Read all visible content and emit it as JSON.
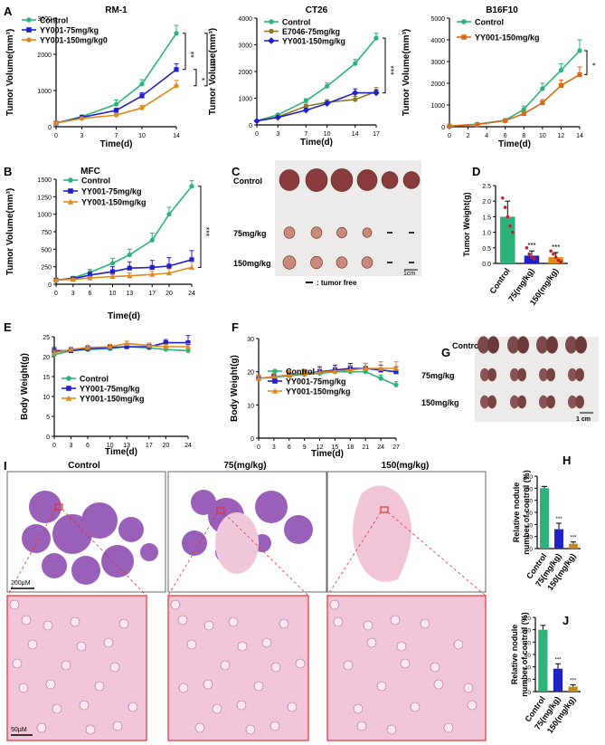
{
  "chart_data": [
    {
      "id": "A1",
      "type": "line",
      "panel": "A",
      "title": "RM-1",
      "xlabel": "Time(d)",
      "ylabel": "Tumor Volume(mm³)",
      "x": [
        0,
        3,
        7,
        10,
        14
      ],
      "xticks": [
        "0",
        "3",
        "7",
        "10",
        "14"
      ],
      "ylim": [
        0,
        3000
      ],
      "yticks": [
        "0",
        "1000",
        "2000",
        "3000"
      ],
      "series": [
        {
          "name": "Control",
          "color": "#2db37a",
          "marker": "circle",
          "values": [
            100,
            280,
            620,
            1180,
            2580
          ],
          "err": [
            20,
            40,
            120,
            120,
            220
          ]
        },
        {
          "name": "YY001-75mg/kg",
          "color": "#2020c8",
          "marker": "square",
          "values": [
            100,
            260,
            450,
            850,
            1580
          ],
          "err": [
            20,
            30,
            60,
            90,
            160
          ]
        },
        {
          "name": "YY001-150mg/kg0",
          "color": "#e08a1c",
          "marker": "circle",
          "values": [
            100,
            230,
            320,
            520,
            1130
          ],
          "err": [
            20,
            30,
            40,
            70,
            150
          ]
        }
      ],
      "sig": [
        {
          "label": "**",
          "from": 0,
          "to": 1
        },
        {
          "label": "*",
          "from": 1,
          "to": 2
        },
        {
          "label": "***",
          "from": 0,
          "to": 2
        }
      ]
    },
    {
      "id": "A2",
      "type": "line",
      "panel": "",
      "title": "CT26",
      "xlabel": "Time(d)",
      "ylabel": "Tumor Volume(mm³)",
      "x": [
        0,
        3,
        7,
        10,
        14,
        17
      ],
      "xticks": [
        "0",
        "3",
        "7",
        "10",
        "14",
        "17"
      ],
      "ylim": [
        0,
        4000
      ],
      "yticks": [
        "0",
        "1000",
        "2000",
        "3000",
        "4000"
      ],
      "series": [
        {
          "name": "Control",
          "color": "#2db37a",
          "marker": "circle",
          "values": [
            150,
            380,
            900,
            1450,
            2300,
            3250
          ],
          "err": [
            20,
            40,
            80,
            120,
            150,
            180
          ]
        },
        {
          "name": "E7046-75mg/kg",
          "color": "#8a7a2a",
          "marker": "circle",
          "values": [
            150,
            300,
            700,
            850,
            950,
            1250
          ],
          "err": [
            20,
            40,
            80,
            100,
            120,
            150
          ]
        },
        {
          "name": "YY001-150mg/kg",
          "color": "#2020c8",
          "marker": "diamond",
          "values": [
            150,
            280,
            550,
            800,
            1200,
            1200
          ],
          "err": [
            20,
            30,
            70,
            90,
            150,
            120
          ]
        }
      ],
      "sig": [
        {
          "label": "***",
          "from": 0,
          "to": 2
        }
      ]
    },
    {
      "id": "A3",
      "type": "line",
      "panel": "",
      "title": "B16F10",
      "xlabel": "Time(d)",
      "ylabel": "Tumor Volume(mm³)",
      "x": [
        0,
        3,
        6,
        8,
        10,
        12,
        14
      ],
      "xticks": [
        "0",
        "2",
        "4",
        "6",
        "8",
        "10",
        "12",
        "14"
      ],
      "ylim": [
        0,
        5000
      ],
      "yticks": [
        "0",
        "1000",
        "2000",
        "3000",
        "4000",
        "5000"
      ],
      "series": [
        {
          "name": "Control",
          "color": "#2db37a",
          "marker": "circle",
          "values": [
            30,
            120,
            300,
            800,
            1750,
            2600,
            3500
          ],
          "err": [
            10,
            20,
            50,
            150,
            250,
            300,
            500
          ]
        },
        {
          "name": "YY001-150mg/kg",
          "color": "#d86a1c",
          "marker": "square",
          "values": [
            30,
            100,
            280,
            600,
            1100,
            1900,
            2400
          ],
          "err": [
            10,
            20,
            40,
            100,
            150,
            250,
            350
          ]
        }
      ],
      "sig": [
        {
          "label": "*",
          "from": 0,
          "to": 1
        }
      ]
    },
    {
      "id": "B",
      "type": "line",
      "panel": "B",
      "title": "MFC",
      "xlabel": "Time(d)",
      "ylabel": "Tumor Volume(mm³)",
      "x": [
        0,
        3,
        6,
        10,
        13,
        17,
        20,
        24
      ],
      "xticks": [
        "0",
        "3",
        "6",
        "10",
        "13",
        "17",
        "20",
        "24"
      ],
      "ylim": [
        0,
        1500
      ],
      "yticks": [
        "0",
        "250",
        "500",
        "750",
        "1000",
        "1250",
        "1500"
      ],
      "series": [
        {
          "name": "Control",
          "color": "#2db37a",
          "marker": "circle",
          "values": [
            60,
            90,
            170,
            300,
            420,
            630,
            1000,
            1400
          ],
          "err": [
            10,
            20,
            40,
            70,
            80,
            100,
            100,
            80
          ]
        },
        {
          "name": "YY001-75mg/kg",
          "color": "#2020c8",
          "marker": "square",
          "values": [
            60,
            80,
            130,
            180,
            230,
            240,
            260,
            350
          ],
          "err": [
            10,
            20,
            40,
            70,
            90,
            100,
            120,
            130
          ]
        },
        {
          "name": "YY001-150mg/kg",
          "color": "#e08a1c",
          "marker": "triangle",
          "values": [
            60,
            70,
            90,
            110,
            120,
            140,
            160,
            240
          ],
          "err": [
            10,
            15,
            20,
            30,
            40,
            50,
            60,
            80
          ]
        }
      ],
      "sig": [
        {
          "label": "***",
          "from": 0,
          "to": 2
        }
      ]
    },
    {
      "id": "D",
      "type": "bar",
      "panel": "D",
      "title": "",
      "xlabel": "",
      "ylabel": "Tumor Weight(g)",
      "categories": [
        "Control",
        "75(mg/kg)",
        "150(mg/kg)"
      ],
      "values": [
        1.5,
        0.25,
        0.2
      ],
      "err": [
        0.5,
        0.15,
        0.15
      ],
      "colors": [
        "#2db37a",
        "#2020c8",
        "#e08a1c"
      ],
      "ylim": [
        0,
        2.5
      ],
      "yticks": [
        "0.0",
        "0.5",
        "1.0",
        "1.5",
        "2.0",
        "2.5"
      ],
      "sig": [
        "",
        "***",
        "***"
      ],
      "points": [
        [
          2.1,
          1.8,
          1.5,
          1.2,
          1.0
        ],
        [
          0.5,
          0.3,
          0.2,
          0.15
        ],
        [
          0.4,
          0.3,
          0.2,
          0.1,
          0.05
        ]
      ]
    },
    {
      "id": "E",
      "type": "line",
      "panel": "E",
      "title": "",
      "xlabel": "Time(d)",
      "ylabel": "Body Weight(g)",
      "x": [
        0,
        3,
        6,
        10,
        13,
        17,
        20,
        24
      ],
      "xticks": [
        "0",
        "3",
        "6",
        "10",
        "13",
        "17",
        "20",
        "24"
      ],
      "ylim": [
        0,
        25
      ],
      "yticks": [
        "0",
        "5",
        "10",
        "15",
        "20",
        "25"
      ],
      "series": [
        {
          "name": "Control",
          "color": "#2db37a",
          "marker": "circle",
          "values": [
            20.5,
            21.5,
            21.8,
            22,
            22.5,
            22.2,
            21.8,
            21.5
          ],
          "err": [
            0.5,
            0.5,
            0.5,
            0.5,
            0.5,
            0.5,
            0.5,
            0.5
          ]
        },
        {
          "name": "YY001-75mg/kg",
          "color": "#2020c8",
          "marker": "square",
          "values": [
            21.5,
            21.5,
            22,
            22.3,
            22.5,
            22.5,
            23.5,
            23.5
          ],
          "err": [
            0.8,
            0.6,
            0.6,
            0.6,
            0.6,
            0.6,
            0.8,
            1.8
          ]
        },
        {
          "name": "YY001-150mg/kg",
          "color": "#e08a1c",
          "marker": "triangle",
          "values": [
            21,
            21.8,
            22.3,
            22.5,
            23.3,
            22.8,
            22.5,
            22.5
          ],
          "err": [
            0.6,
            0.6,
            0.6,
            0.6,
            0.6,
            0.6,
            0.6,
            0.8
          ]
        }
      ]
    },
    {
      "id": "F",
      "type": "line",
      "panel": "F",
      "title": "",
      "xlabel": "Time(d)",
      "ylabel": "Body Weight(g)",
      "x": [
        0,
        3,
        6,
        9,
        12,
        15,
        18,
        21,
        24,
        27
      ],
      "xticks": [
        "0",
        "3",
        "6",
        "9",
        "12",
        "15",
        "18",
        "21",
        "24",
        "27"
      ],
      "ylim": [
        0,
        30
      ],
      "yticks": [
        "0",
        "10",
        "20",
        "30"
      ],
      "series": [
        {
          "name": "Control",
          "color": "#2db37a",
          "marker": "circle",
          "values": [
            18,
            18.3,
            18.8,
            19.2,
            19.5,
            20,
            20,
            20,
            18,
            16
          ],
          "err": [
            1,
            1,
            1,
            1,
            1,
            1,
            1,
            1,
            1,
            1
          ]
        },
        {
          "name": "YY001-75mg/kg",
          "color": "#2020c8",
          "marker": "square",
          "values": [
            18,
            18.5,
            19,
            19.5,
            20,
            20.5,
            21,
            21,
            20.5,
            20
          ],
          "err": [
            1,
            1,
            1.2,
            1.2,
            1.5,
            1.5,
            1.5,
            1.5,
            1.5,
            1.5
          ]
        },
        {
          "name": "YY001-150mg/kg",
          "color": "#e08a1c",
          "marker": "triangle",
          "values": [
            18,
            18.5,
            19,
            19.5,
            19.8,
            20.2,
            20.5,
            21,
            21,
            21
          ],
          "err": [
            1,
            1,
            1,
            1.2,
            1.2,
            1.2,
            1.5,
            1.5,
            2,
            2
          ]
        }
      ]
    },
    {
      "id": "H",
      "type": "bar",
      "panel": "H",
      "title": "",
      "xlabel": "",
      "ylabel": "Relative nodule\nnumber of control (%)",
      "categories": [
        "Control",
        "75(mg/kg)",
        "150(mg/kg)"
      ],
      "values": [
        100,
        32,
        8
      ],
      "err": [
        3,
        10,
        3
      ],
      "colors": [
        "#2db37a",
        "#2020c8",
        "#c98a1c"
      ],
      "ylim": [
        0,
        120
      ],
      "yticks": [
        "0",
        "20",
        "40",
        "60",
        "80",
        "100",
        "120"
      ],
      "sig": [
        "",
        "***",
        "***"
      ]
    },
    {
      "id": "J",
      "type": "bar",
      "panel": "J",
      "title": "",
      "xlabel": "",
      "ylabel": "Relative nodule\nnumber of control (%)",
      "categories": [
        "Control",
        "75(mg/kg)",
        "150(mg/kg)"
      ],
      "values": [
        100,
        37,
        8
      ],
      "err": [
        7,
        8,
        3
      ],
      "colors": [
        "#2db37a",
        "#2020c8",
        "#c98a1c"
      ],
      "ylim": [
        0,
        120
      ],
      "yticks": [
        "0",
        "20",
        "40",
        "60",
        "80",
        "100",
        "120"
      ],
      "sig": [
        "",
        "***",
        "***"
      ]
    }
  ],
  "panel_c": {
    "letter": "C",
    "rows": [
      "Control",
      "75mg/kg",
      "150mg/kg"
    ],
    "scale": "1cm",
    "legend": ": tumor free"
  },
  "panel_g": {
    "letter": "G",
    "rows": [
      "Control",
      "75mg/kg",
      "150mg/kg"
    ],
    "scale": "1 cm"
  },
  "panel_i": {
    "letter": "I",
    "columns": [
      "Control",
      "75(mg/kg)",
      "150(mg/kg)"
    ],
    "scale_top": "200μM",
    "scale_bottom": "50μM"
  },
  "colors": {
    "tissue_purple": "#9a5fb8",
    "he_pink": "#e8a8c8",
    "frame_red": "#e53030"
  }
}
